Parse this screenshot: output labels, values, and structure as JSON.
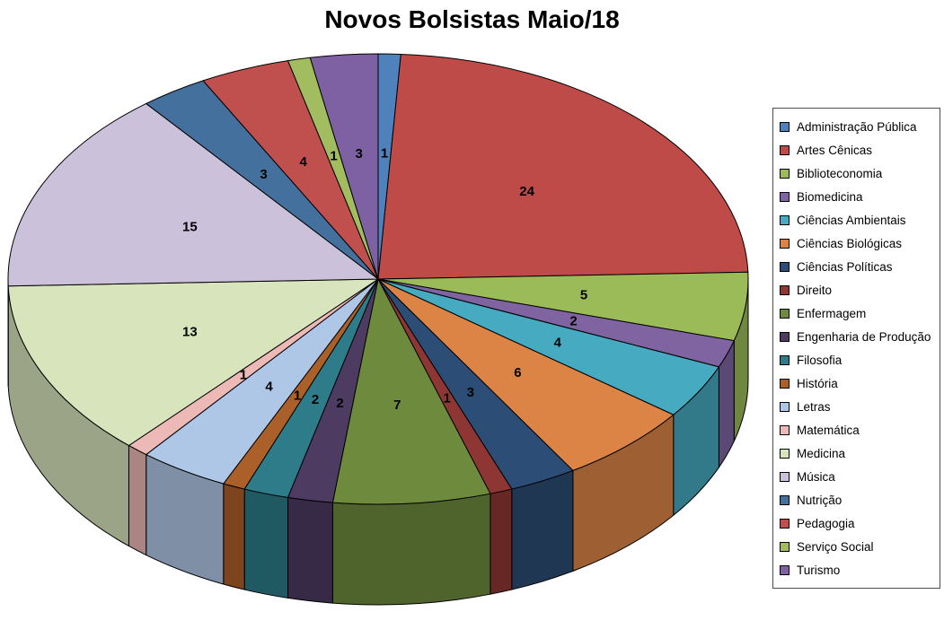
{
  "chart_data": {
    "type": "pie",
    "is_3d": true,
    "title": "Novos Bolsistas Maio/18",
    "legend_position": "right",
    "grid": false,
    "categories": [
      "Administração Pública",
      "Artes Cênicas",
      "Biblioteconomia",
      "Biomedicina",
      "Ciências Ambientais",
      "Ciências Biológicas",
      "Ciências Políticas",
      "Direito",
      "Enfermagem",
      "Engenharia de Produção",
      "Filosofia",
      "História",
      "Letras",
      "Matemática",
      "Medicina",
      "Música",
      "Nutrição",
      "Pedagogia",
      "Serviço Social",
      "Turismo"
    ],
    "values": [
      1,
      24,
      5,
      2,
      4,
      6,
      3,
      1,
      7,
      2,
      2,
      1,
      4,
      1,
      13,
      15,
      3,
      4,
      1,
      3
    ],
    "colors": [
      "#4F81BD",
      "#BE4B48",
      "#9BBB59",
      "#8064A2",
      "#46AAC0",
      "#DB8446",
      "#2C4D75",
      "#8E3634",
      "#6E8B3D",
      "#4D3B62",
      "#2E7C8A",
      "#AC6029",
      "#AFC7E6",
      "#EDB9B7",
      "#D8E4BC",
      "#CCC1DA",
      "#44709D",
      "#C0504D",
      "#A2BD60",
      "#7E61A2"
    ],
    "data_labels": "values",
    "title_color": "#000000",
    "background": "#ffffff"
  }
}
